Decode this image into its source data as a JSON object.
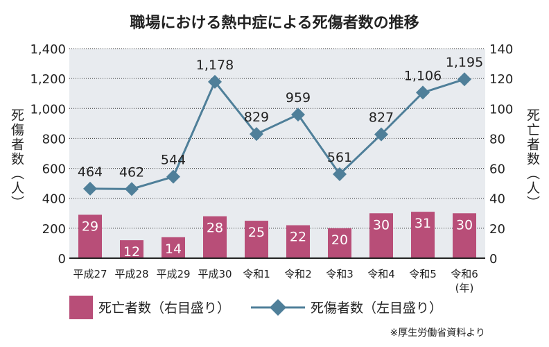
{
  "chart_data": {
    "type": "bar+line",
    "title": "職場における熱中症による死傷者数の推移",
    "categories": [
      "平成27",
      "平成28",
      "平成29",
      "平成30",
      "令和1",
      "令和2",
      "令和3",
      "令和4",
      "令和5",
      "令和6"
    ],
    "x_unit": "(年)",
    "ylabel_left": "死傷者数（人）",
    "ylabel_right": "死亡者数（人）",
    "ylim_left": [
      0,
      1400
    ],
    "ylim_right": [
      0,
      140
    ],
    "yticks_left": [
      "0",
      "200",
      "400",
      "600",
      "800",
      "1,000",
      "1,200",
      "1,400"
    ],
    "yticks_right": [
      "0",
      "20",
      "40",
      "60",
      "80",
      "100",
      "120",
      "140"
    ],
    "grid": "horizontal dotted",
    "series": [
      {
        "name": "死亡者数（右目盛り）",
        "type": "bar",
        "axis": "right",
        "color": "#b84e78",
        "values": [
          29,
          12,
          14,
          28,
          25,
          22,
          20,
          30,
          31,
          30
        ],
        "labels": [
          "29",
          "12",
          "14",
          "28",
          "25",
          "22",
          "20",
          "30",
          "31",
          "30"
        ]
      },
      {
        "name": "死傷者数（左目盛り）",
        "type": "line",
        "axis": "left",
        "color": "#4f7f99",
        "marker": "diamond",
        "values": [
          464,
          462,
          544,
          1178,
          829,
          959,
          561,
          827,
          1106,
          1195
        ],
        "labels": [
          "464",
          "462",
          "544",
          "1,178",
          "829",
          "959",
          "561",
          "827",
          "1,106",
          "1,195"
        ]
      }
    ],
    "legend_placement": "bottom",
    "source": "※厚生労働省資料より",
    "plot_background": "#e8ebef"
  }
}
